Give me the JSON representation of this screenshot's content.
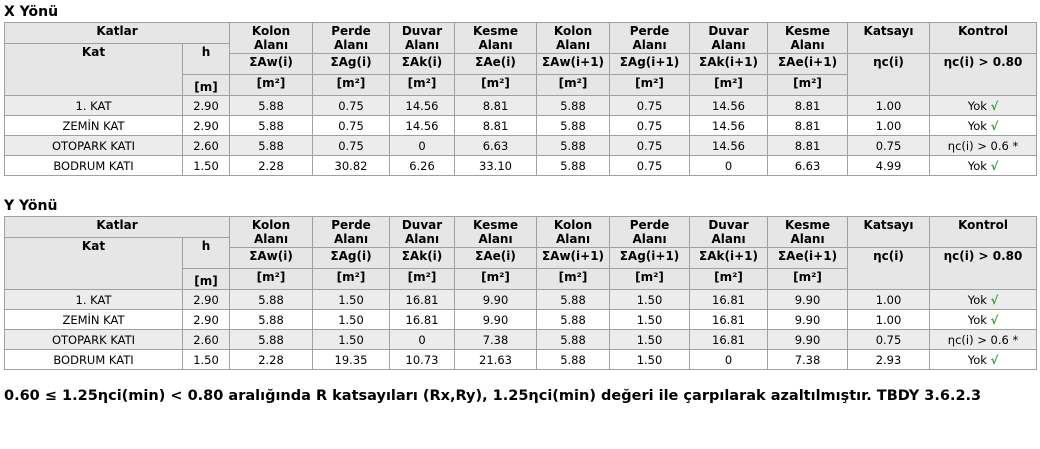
{
  "sections": [
    {
      "title": "X Yönü",
      "header": {
        "group": "Katlar",
        "kat": "Kat",
        "h": "h",
        "h_unit": "[m]",
        "columns": [
          {
            "name": "Kolon Alanı",
            "symbol": "ΣAw(i)",
            "unit": "[m²]"
          },
          {
            "name": "Perde Alanı",
            "symbol": "ΣAg(i)",
            "unit": "[m²]"
          },
          {
            "name": "Duvar Alanı",
            "symbol": "ΣAk(i)",
            "unit": "[m²]"
          },
          {
            "name": "Kesme Alanı",
            "symbol": "ΣAe(i)",
            "unit": "[m²]"
          },
          {
            "name": "Kolon Alanı",
            "symbol": "ΣAw(i+1)",
            "unit": "[m²]"
          },
          {
            "name": "Perde Alanı",
            "symbol": "ΣAg(i+1)",
            "unit": "[m²]"
          },
          {
            "name": "Duvar Alanı",
            "symbol": "ΣAk(i+1)",
            "unit": "[m²]"
          },
          {
            "name": "Kesme Alanı",
            "symbol": "ΣAe(i+1)",
            "unit": "[m²]"
          },
          {
            "name": "Katsayı",
            "symbol": "ηc(i)"
          },
          {
            "name": "Kontrol",
            "symbol": "ηc(i) > 0.80"
          }
        ]
      },
      "rows": [
        {
          "kat": "1. KAT",
          "h": "2.90",
          "values": [
            "5.88",
            "0.75",
            "14.56",
            "8.81",
            "5.88",
            "0.75",
            "14.56",
            "8.81",
            "1.00"
          ],
          "kontrol": "Yok",
          "check": "√"
        },
        {
          "kat": "ZEMİN KAT",
          "h": "2.90",
          "values": [
            "5.88",
            "0.75",
            "14.56",
            "8.81",
            "5.88",
            "0.75",
            "14.56",
            "8.81",
            "1.00"
          ],
          "kontrol": "Yok",
          "check": "√"
        },
        {
          "kat": "OTOPARK KATI",
          "h": "2.60",
          "values": [
            "5.88",
            "0.75",
            "0",
            "6.63",
            "5.88",
            "0.75",
            "14.56",
            "8.81",
            "0.75"
          ],
          "kontrol": "ηc(i) > 0.6 *"
        },
        {
          "kat": "BODRUM KATI",
          "h": "1.50",
          "values": [
            "2.28",
            "30.82",
            "6.26",
            "33.10",
            "5.88",
            "0.75",
            "0",
            "6.63",
            "4.99"
          ],
          "kontrol": "Yok",
          "check": "√"
        }
      ]
    },
    {
      "title": "Y Yönü",
      "header": {
        "group": "Katlar",
        "kat": "Kat",
        "h": "h",
        "h_unit": "[m]",
        "columns": [
          {
            "name": "Kolon Alanı",
            "symbol": "ΣAw(i)",
            "unit": "[m²]"
          },
          {
            "name": "Perde Alanı",
            "symbol": "ΣAg(i)",
            "unit": "[m²]"
          },
          {
            "name": "Duvar Alanı",
            "symbol": "ΣAk(i)",
            "unit": "[m²]"
          },
          {
            "name": "Kesme Alanı",
            "symbol": "ΣAe(i)",
            "unit": "[m²]"
          },
          {
            "name": "Kolon Alanı",
            "symbol": "ΣAw(i+1)",
            "unit": "[m²]"
          },
          {
            "name": "Perde Alanı",
            "symbol": "ΣAg(i+1)",
            "unit": "[m²]"
          },
          {
            "name": "Duvar Alanı",
            "symbol": "ΣAk(i+1)",
            "unit": "[m²]"
          },
          {
            "name": "Kesme Alanı",
            "symbol": "ΣAe(i+1)",
            "unit": "[m²]"
          },
          {
            "name": "Katsayı",
            "symbol": "ηc(i)"
          },
          {
            "name": "Kontrol",
            "symbol": "ηc(i) > 0.80"
          }
        ]
      },
      "rows": [
        {
          "kat": "1. KAT",
          "h": "2.90",
          "values": [
            "5.88",
            "1.50",
            "16.81",
            "9.90",
            "5.88",
            "1.50",
            "16.81",
            "9.90",
            "1.00"
          ],
          "kontrol": "Yok",
          "check": "√"
        },
        {
          "kat": "ZEMİN KAT",
          "h": "2.90",
          "values": [
            "5.88",
            "1.50",
            "16.81",
            "9.90",
            "5.88",
            "1.50",
            "16.81",
            "9.90",
            "1.00"
          ],
          "kontrol": "Yok",
          "check": "√"
        },
        {
          "kat": "OTOPARK KATI",
          "h": "2.60",
          "values": [
            "5.88",
            "1.50",
            "0",
            "7.38",
            "5.88",
            "1.50",
            "16.81",
            "9.90",
            "0.75"
          ],
          "kontrol": "ηc(i) > 0.6 *"
        },
        {
          "kat": "BODRUM KATI",
          "h": "1.50",
          "values": [
            "2.28",
            "19.35",
            "10.73",
            "21.63",
            "5.88",
            "1.50",
            "0",
            "7.38",
            "2.93"
          ],
          "kontrol": "Yok",
          "check": "√"
        }
      ]
    }
  ],
  "footer": "0.60 ≤ 1.25ηci(min) < 0.80 aralığında R katsayıları (Rx,Ry), 1.25ηci(min) değeri ile çarpılarak azaltılmıştır. TBDY 3.6.2.3"
}
